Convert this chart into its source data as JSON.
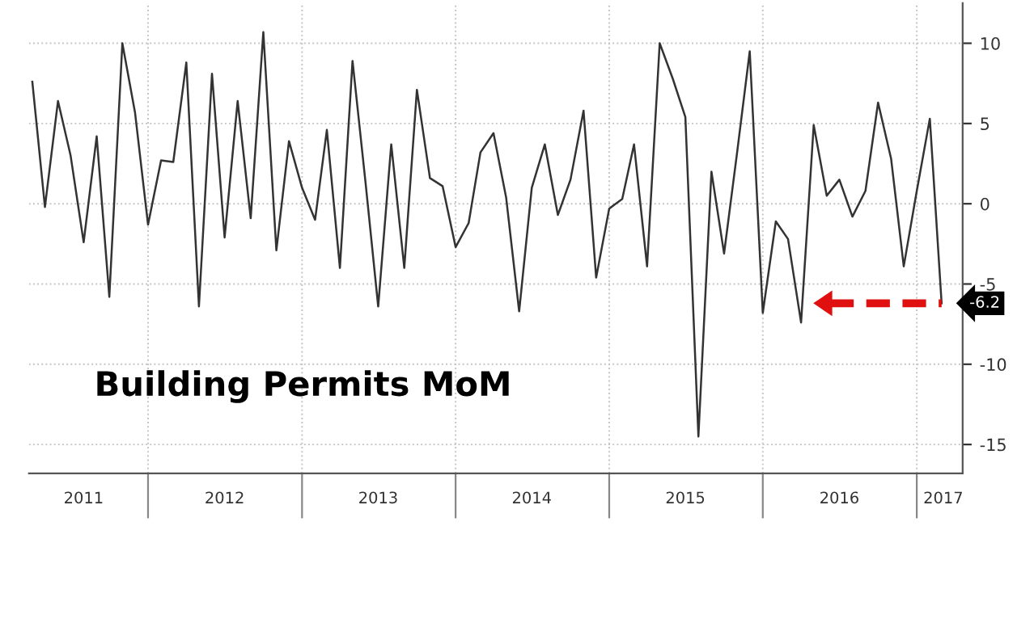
{
  "chart_data": {
    "type": "line",
    "title": "Building Permits MoM",
    "x": [
      "2011-04",
      "2011-05",
      "2011-06",
      "2011-07",
      "2011-08",
      "2011-09",
      "2011-10",
      "2011-11",
      "2011-12",
      "2012-01",
      "2012-02",
      "2012-03",
      "2012-04",
      "2012-05",
      "2012-06",
      "2012-07",
      "2012-08",
      "2012-09",
      "2012-10",
      "2012-11",
      "2012-12",
      "2013-01",
      "2013-02",
      "2013-03",
      "2013-04",
      "2013-05",
      "2013-06",
      "2013-07",
      "2013-08",
      "2013-09",
      "2013-10",
      "2013-11",
      "2013-12",
      "2014-01",
      "2014-02",
      "2014-03",
      "2014-04",
      "2014-05",
      "2014-06",
      "2014-07",
      "2014-08",
      "2014-09",
      "2014-10",
      "2014-11",
      "2014-12",
      "2015-01",
      "2015-02",
      "2015-03",
      "2015-04",
      "2015-05",
      "2015-06",
      "2015-07",
      "2015-08",
      "2015-09",
      "2015-10",
      "2015-11",
      "2015-12",
      "2016-01",
      "2016-02",
      "2016-03",
      "2016-04",
      "2016-05",
      "2016-06",
      "2016-07",
      "2016-08",
      "2016-09",
      "2016-10",
      "2016-11",
      "2016-12",
      "2017-01",
      "2017-02",
      "2017-03"
    ],
    "series": [
      {
        "color": "#333333",
        "values": [
          7.6,
          -0.2,
          6.4,
          3.0,
          -2.4,
          4.2,
          -5.8,
          10.0,
          5.7,
          -1.3,
          2.7,
          2.6,
          8.8,
          -6.4,
          8.1,
          -2.1,
          6.4,
          -0.9,
          10.7,
          -2.9,
          3.9,
          1.0,
          -1.0,
          4.6,
          -4.0,
          8.9,
          1.3,
          -6.4,
          3.7,
          -4.0,
          7.1,
          1.6,
          1.1,
          -2.7,
          -1.2,
          3.2,
          4.4,
          0.4,
          -6.7,
          1.0,
          3.7,
          -0.7,
          1.5,
          5.8,
          -4.6,
          -0.3,
          0.3,
          3.7,
          -3.9,
          10.0,
          7.8,
          5.4,
          -14.5,
          2.0,
          -3.1,
          3.2,
          9.5,
          -6.8,
          -1.1,
          -2.2,
          -7.4,
          4.9,
          0.5,
          1.5,
          -0.8,
          0.8,
          6.3,
          2.8,
          -3.9,
          0.8,
          5.3,
          -6.2
        ]
      }
    ],
    "annotations": [
      {
        "text": "-6.2",
        "x": "2017-03",
        "y": -6.2
      }
    ],
    "xlim": [
      "2011-03-24",
      "2017-04-20"
    ],
    "xticks": [
      {
        "value": "2012-01-01",
        "label": null
      },
      {
        "value": "2013-01-01",
        "label": null
      },
      {
        "value": "2014-01-01",
        "label": null
      },
      {
        "value": "2015-01-01",
        "label": null
      },
      {
        "value": "2016-01-01",
        "label": null
      },
      {
        "value": "2017-01-01",
        "label": null
      },
      {
        "value": "2011-08-01",
        "label": "2011"
      },
      {
        "value": "2012-07-01",
        "label": "2012"
      },
      {
        "value": "2013-07-01",
        "label": "2013"
      },
      {
        "value": "2014-07-01",
        "label": "2014"
      },
      {
        "value": "2015-07-01",
        "label": "2015"
      },
      {
        "value": "2016-07-01",
        "label": "2016"
      },
      {
        "value": "2017-03-05",
        "label": "2017"
      }
    ],
    "ylim": [
      -16.8,
      12.5
    ],
    "yticks": [
      -15,
      -10,
      -5,
      0,
      5,
      10
    ],
    "grid": true,
    "line_style": "solid",
    "marker": "none"
  }
}
